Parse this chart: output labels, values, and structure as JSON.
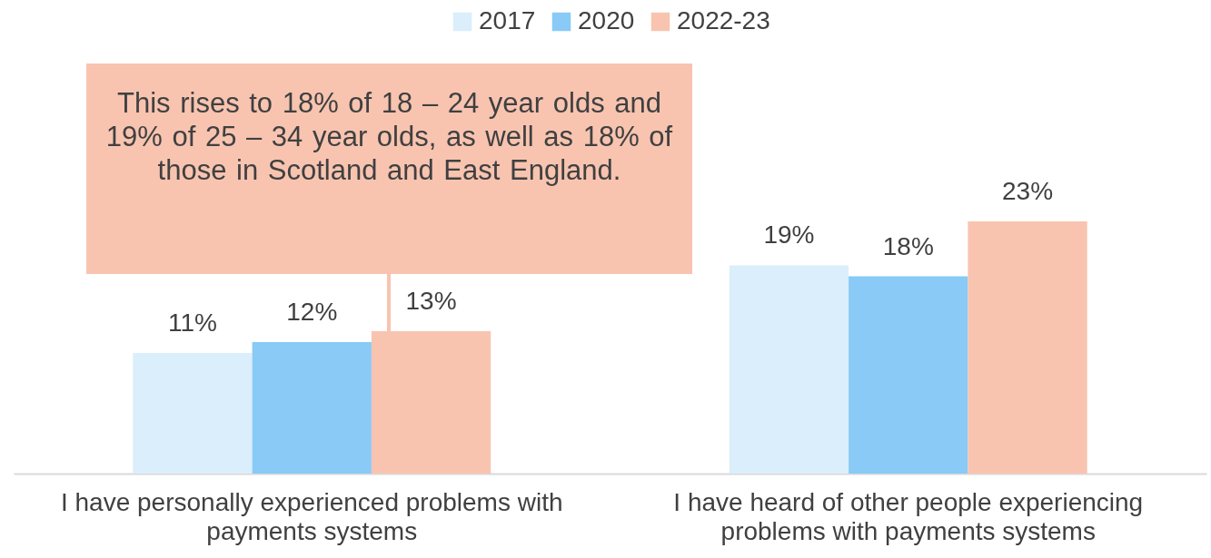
{
  "chart_data": {
    "type": "bar",
    "categories": [
      "I have personally experienced problems with payments systems",
      "I have heard of other people experiencing problems with payments systems"
    ],
    "series": [
      {
        "name": "2017",
        "color": "#dbeefb",
        "values": [
          11,
          19
        ],
        "value_labels": [
          "11%",
          "19%"
        ]
      },
      {
        "name": "2020",
        "color": "#89caf6",
        "values": [
          12,
          18
        ],
        "value_labels": [
          "12%",
          "18%"
        ]
      },
      {
        "name": "2022-23",
        "color": "#f8c4b0",
        "values": [
          13,
          23
        ],
        "value_labels": [
          "13%",
          "23%"
        ]
      }
    ],
    "annotations": [
      "This rises to 18% of 18 – 24 year olds and 19% of 25 – 34 year olds, as well as 18% of those in Scotland and East England."
    ],
    "legend": "top",
    "grid": false
  }
}
